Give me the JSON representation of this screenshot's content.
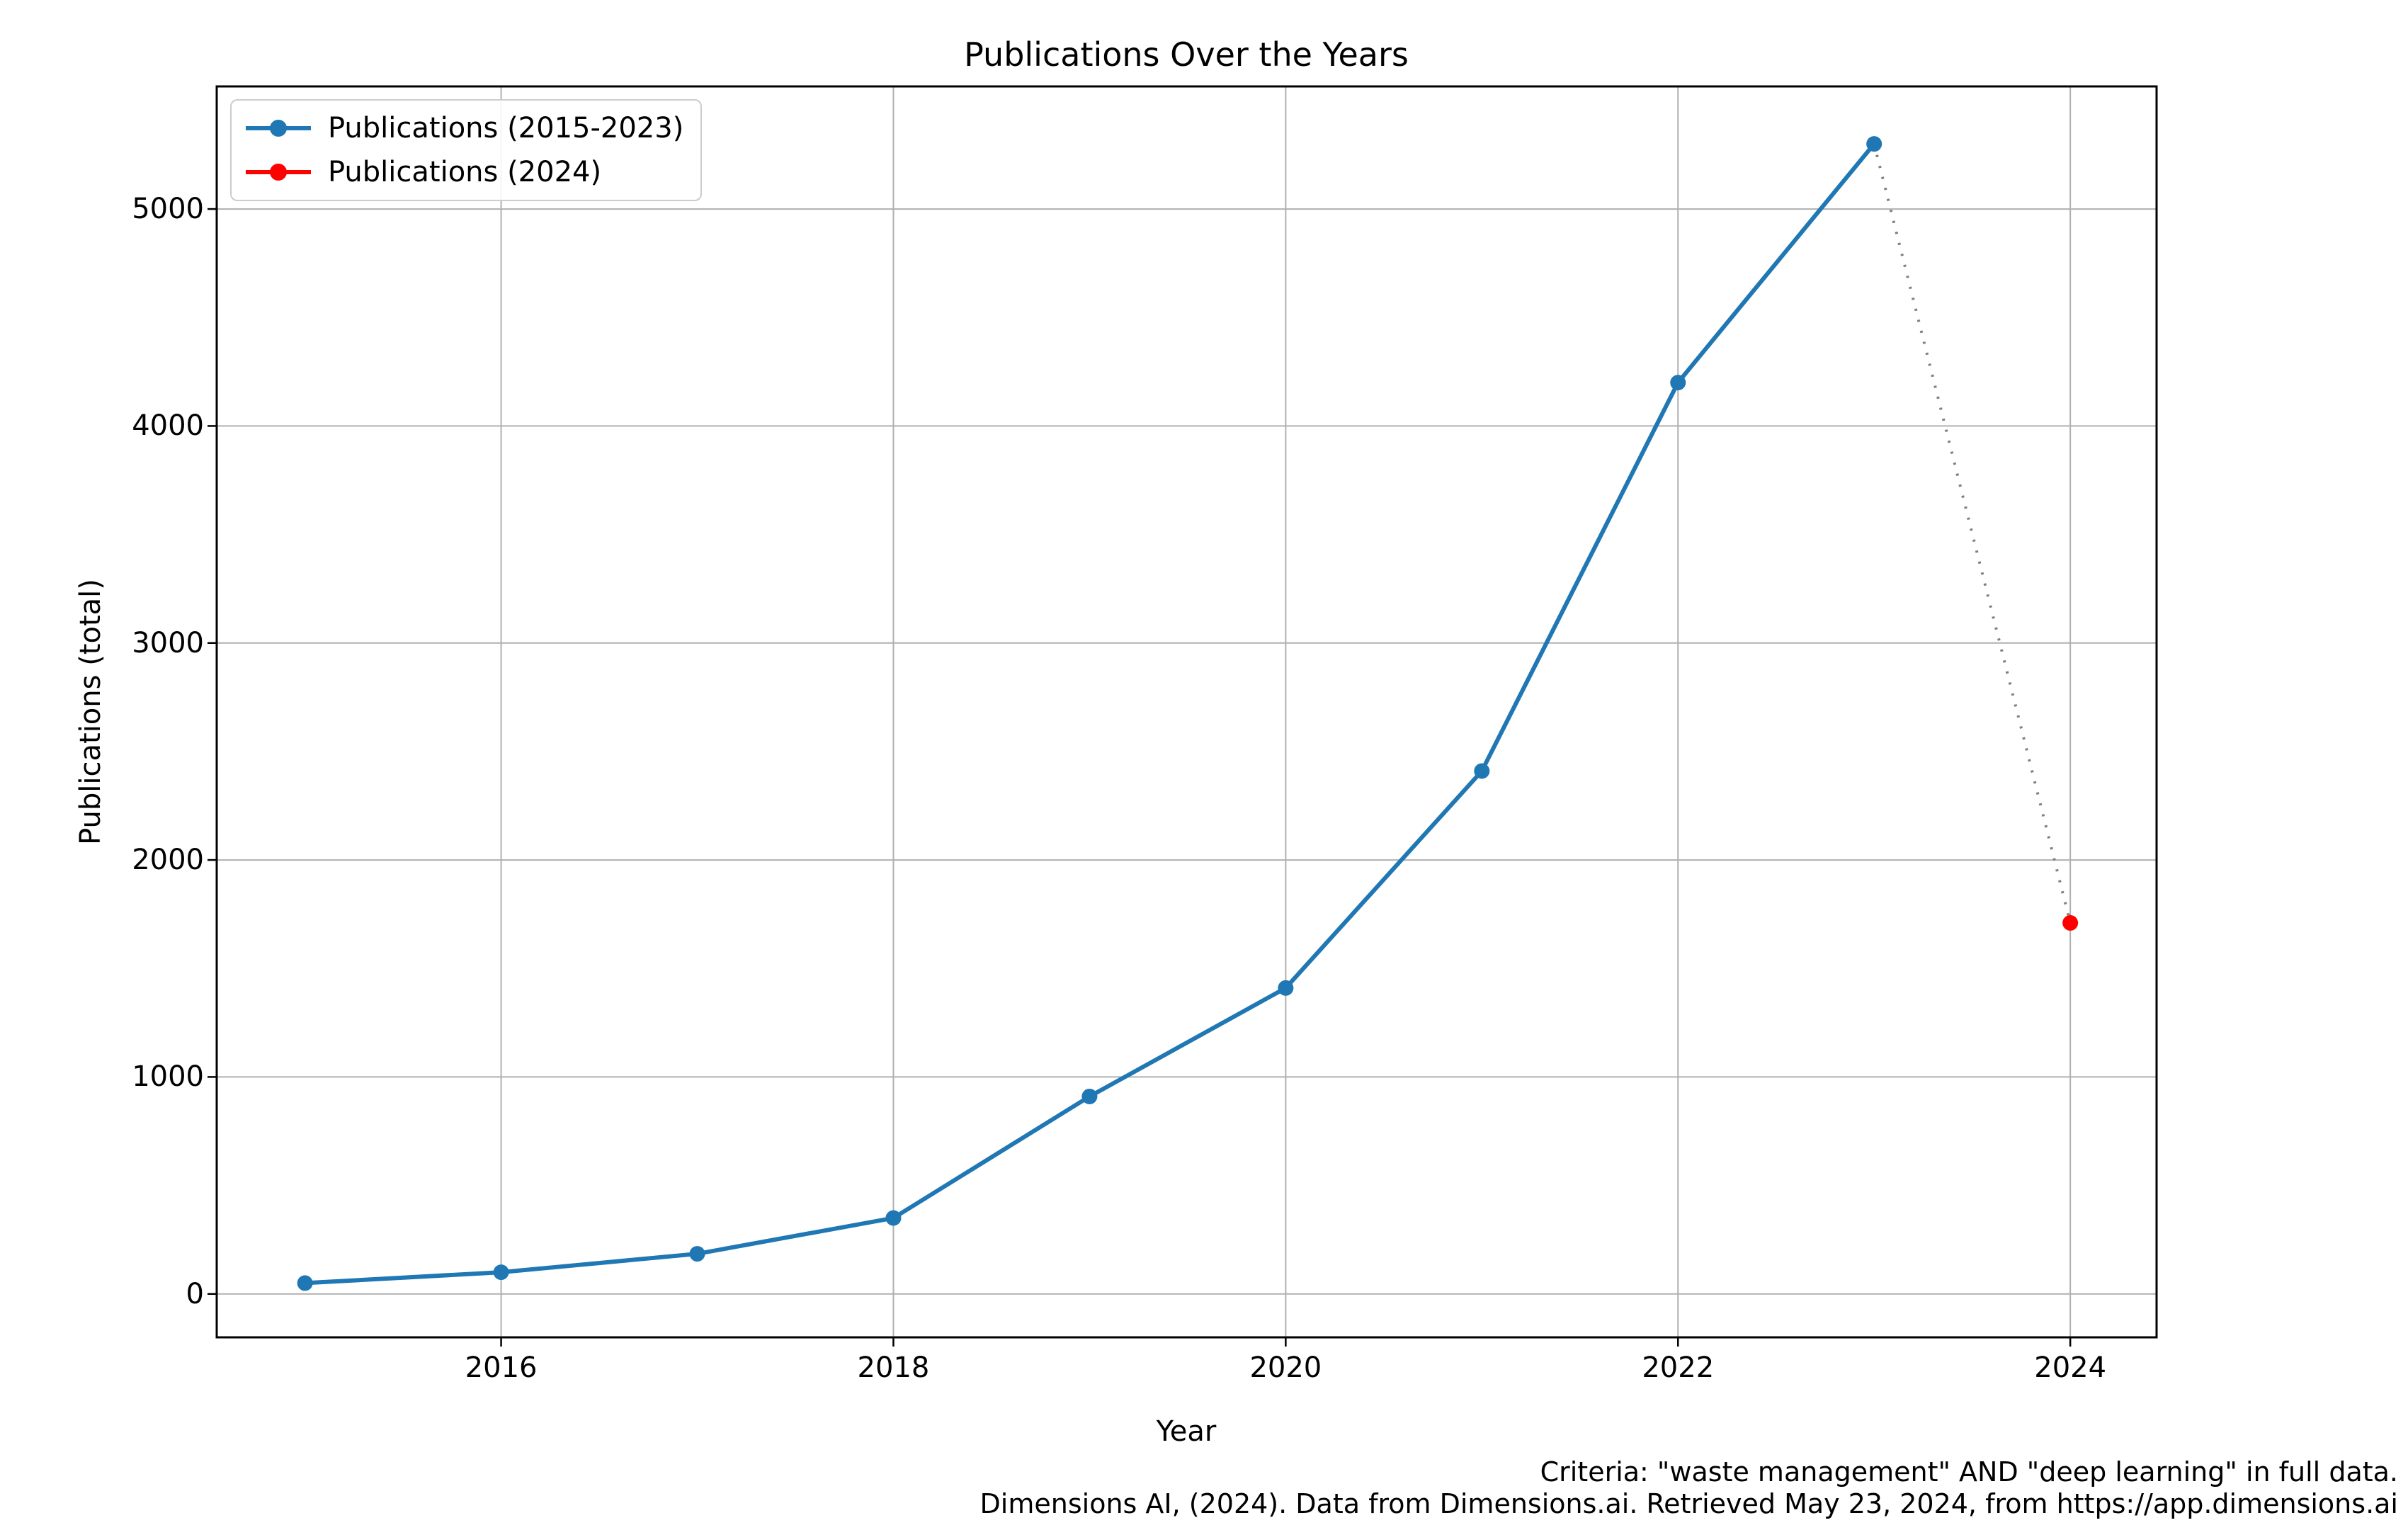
{
  "title": "Publications Over the Years",
  "xlabel": "Year",
  "ylabel": "Publications (total)",
  "legend": {
    "items": [
      {
        "label": "Publications (2015-2023)",
        "color": "#1f77b4"
      },
      {
        "label": "Publications (2024)",
        "color": "#ff0000"
      }
    ]
  },
  "caption": {
    "line1": "Criteria: \"waste management\" AND \"deep learning\" in full data.",
    "line2": "Dimensions AI, (2024). Data from Dimensions.ai. Retrieved May 23, 2024, from https://app.dimensions.ai"
  },
  "colors": {
    "grid": "#b0b0b0",
    "spine": "#000000",
    "connector": "#808080",
    "blue": "#1f77b4",
    "red": "#ff0000"
  },
  "chart_data": {
    "type": "line",
    "title": "Publications Over the Years",
    "xlabel": "Year",
    "ylabel": "Publications (total)",
    "xlim": [
      2014.55,
      2024.44
    ],
    "ylim": [
      -200,
      5565
    ],
    "grid": true,
    "legend_position": "upper left",
    "xticks": [
      2016,
      2018,
      2020,
      2022,
      2024
    ],
    "xtick_labels": [
      "2016",
      "2018",
      "2020",
      "2022",
      "2024"
    ],
    "yticks": [
      0,
      1000,
      2000,
      3000,
      4000,
      5000
    ],
    "ytick_labels": [
      "0",
      "1000",
      "2000",
      "3000",
      "4000",
      "5000"
    ],
    "series": [
      {
        "name": "Publications (2015-2023)",
        "color": "#1f77b4",
        "linestyle": "solid",
        "marker": "circle",
        "x": [
          2015,
          2016,
          2017,
          2018,
          2019,
          2020,
          2021,
          2022,
          2023
        ],
        "y": [
          50,
          100,
          185,
          350,
          910,
          1410,
          2410,
          4200,
          5300
        ]
      },
      {
        "name": "Publications (2024)",
        "color": "#ff0000",
        "linestyle": "none",
        "marker": "circle",
        "x": [
          2024
        ],
        "y": [
          1710
        ]
      },
      {
        "name": "2023 to 2024 dotted connector",
        "color": "#808080",
        "linestyle": "dotted",
        "marker": "none",
        "x": [
          2023,
          2024
        ],
        "y": [
          5300,
          1710
        ]
      }
    ]
  }
}
